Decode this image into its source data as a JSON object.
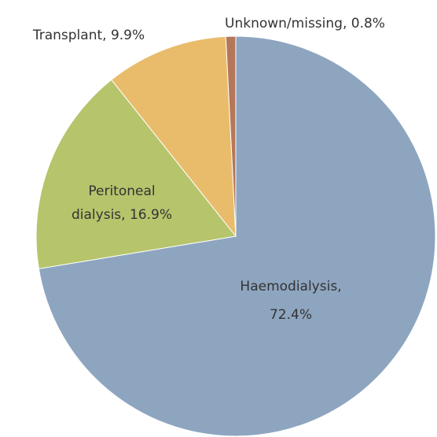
{
  "chart_data": {
    "type": "pie",
    "categories": [
      "Haemodialysis",
      "Peritoneal dialysis",
      "Transplant",
      "Unknown/missing"
    ],
    "values": [
      72.4,
      16.9,
      9.9,
      0.8
    ],
    "value_labels": [
      "72.4%",
      "16.9%",
      "9.9%",
      "0.8%"
    ],
    "colors": [
      "#8ea5c0",
      "#b6c46c",
      "#e9bc6c",
      "#b5775a"
    ],
    "start_angle": 0,
    "direction": "clockwise"
  }
}
